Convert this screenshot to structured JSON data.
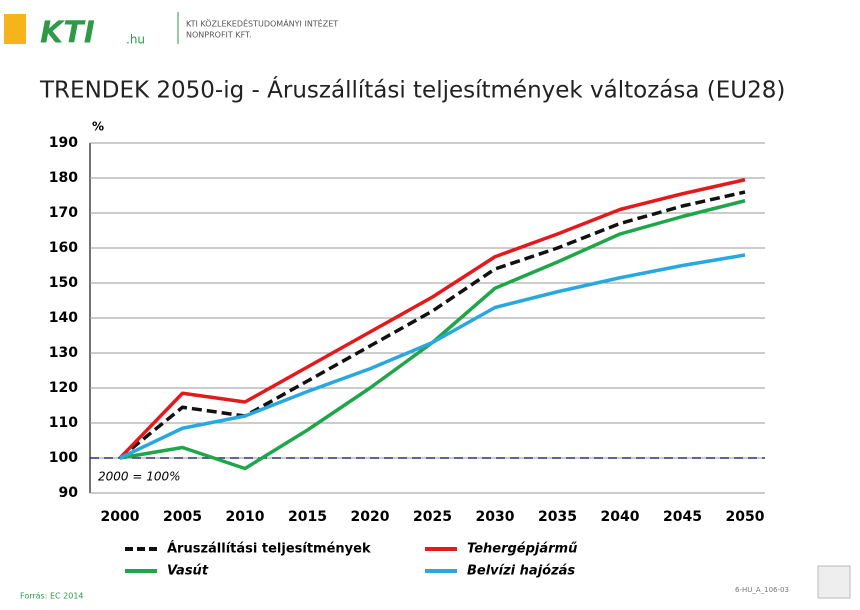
{
  "header": {
    "logo": "KTI",
    "domain": ".hu",
    "org_line1": "KTI KÖZLEKEDÉSTUDOMÁNYI INTÉZET",
    "org_line2": "NONPROFIT KFT."
  },
  "chart_data": {
    "type": "line",
    "title": "TRENDEK 2050-ig - Áruszállítási teljesítmények változása (EU28)",
    "y_unit_label": "%",
    "annotation": "2000 = 100%",
    "reference_line": 100,
    "x": [
      2000,
      2005,
      2010,
      2015,
      2020,
      2025,
      2030,
      2035,
      2040,
      2045,
      2050
    ],
    "xlim": [
      2000,
      2050
    ],
    "ylim": [
      90,
      190
    ],
    "yticks": [
      90,
      100,
      110,
      120,
      130,
      140,
      150,
      160,
      170,
      180,
      190
    ],
    "grid": true,
    "legend": "bottom",
    "series": [
      {
        "name": "Áruszállítási teljesítmények",
        "color": "#111111",
        "dashed": true,
        "values": [
          100,
          114.5,
          112,
          122,
          132,
          142,
          154,
          160,
          167,
          172,
          176
        ]
      },
      {
        "name": "Tehergépjármű",
        "color": "#e3191c",
        "italic": true,
        "values": [
          100,
          118.5,
          116,
          126,
          136,
          146,
          157.5,
          164,
          171,
          175.5,
          179.5
        ]
      },
      {
        "name": "Vasút",
        "color": "#1fa64a",
        "italic": true,
        "values": [
          100,
          103,
          97,
          108,
          120,
          133,
          148.5,
          156,
          164,
          169,
          173.5
        ]
      },
      {
        "name": "Belvízi hajózás",
        "color": "#29a8e0",
        "italic": true,
        "values": [
          100,
          108.5,
          112,
          119,
          125.5,
          133,
          143,
          147.5,
          151.5,
          155,
          158
        ]
      }
    ]
  },
  "footer": {
    "source": "Forrás: EC 2014",
    "code": "6-HU_A_106-03"
  }
}
